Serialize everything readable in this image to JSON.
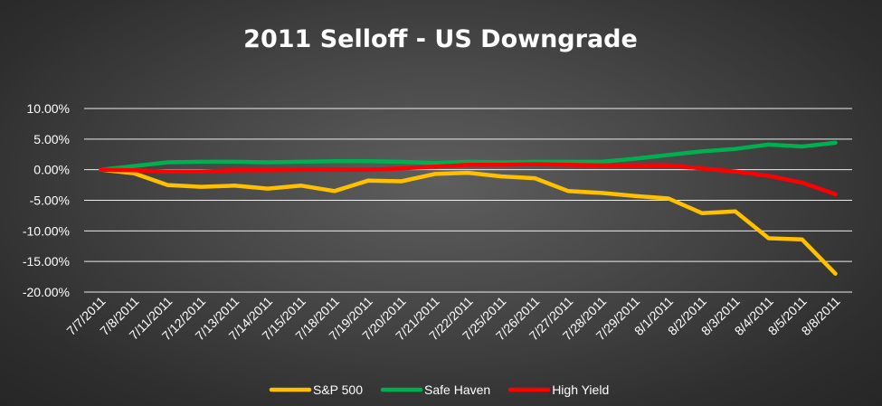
{
  "chart_data": {
    "type": "line",
    "title": "2011 Selloff - US Downgrade",
    "xlabel": "",
    "ylabel": "",
    "ylim": [
      -0.2,
      0.1
    ],
    "y_ticks": [
      "10.00%",
      "5.00%",
      "0.00%",
      "-5.00%",
      "-10.00%",
      "-15.00%",
      "-20.00%"
    ],
    "y_tick_values": [
      0.1,
      0.05,
      0.0,
      -0.05,
      -0.1,
      -0.15,
      -0.2
    ],
    "grid": true,
    "legend_position": "bottom",
    "categories": [
      "7/7/2011",
      "7/8/2011",
      "7/11/2011",
      "7/12/2011",
      "7/13/2011",
      "7/14/2011",
      "7/15/2011",
      "7/18/2011",
      "7/19/2011",
      "7/20/2011",
      "7/21/2011",
      "7/22/2011",
      "7/25/2011",
      "7/26/2011",
      "7/27/2011",
      "7/28/2011",
      "7/29/2011",
      "8/1/2011",
      "8/2/2011",
      "8/3/2011",
      "8/4/2011",
      "8/5/2011",
      "8/8/2011"
    ],
    "series": [
      {
        "name": "S&P 500",
        "color": "#ffc000",
        "values": [
          0.0,
          -0.006,
          -0.025,
          -0.028,
          -0.026,
          -0.031,
          -0.026,
          -0.035,
          -0.018,
          -0.019,
          -0.007,
          -0.005,
          -0.011,
          -0.014,
          -0.035,
          -0.038,
          -0.043,
          -0.047,
          -0.071,
          -0.068,
          -0.112,
          -0.114,
          -0.17
        ]
      },
      {
        "name": "Safe Haven",
        "color": "#00b050",
        "values": [
          0.0,
          0.006,
          0.012,
          0.013,
          0.013,
          0.012,
          0.013,
          0.014,
          0.014,
          0.013,
          0.011,
          0.013,
          0.012,
          0.013,
          0.013,
          0.013,
          0.018,
          0.024,
          0.03,
          0.034,
          0.041,
          0.038,
          0.044
        ]
      },
      {
        "name": "High Yield",
        "color": "#ff0000",
        "values": [
          0.0,
          -0.001,
          -0.003,
          -0.003,
          -0.001,
          -0.001,
          0.0,
          0.0,
          0.0,
          0.002,
          0.005,
          0.008,
          0.008,
          0.009,
          0.008,
          0.007,
          0.007,
          0.007,
          0.002,
          -0.003,
          -0.01,
          -0.021,
          -0.04
        ]
      }
    ]
  }
}
